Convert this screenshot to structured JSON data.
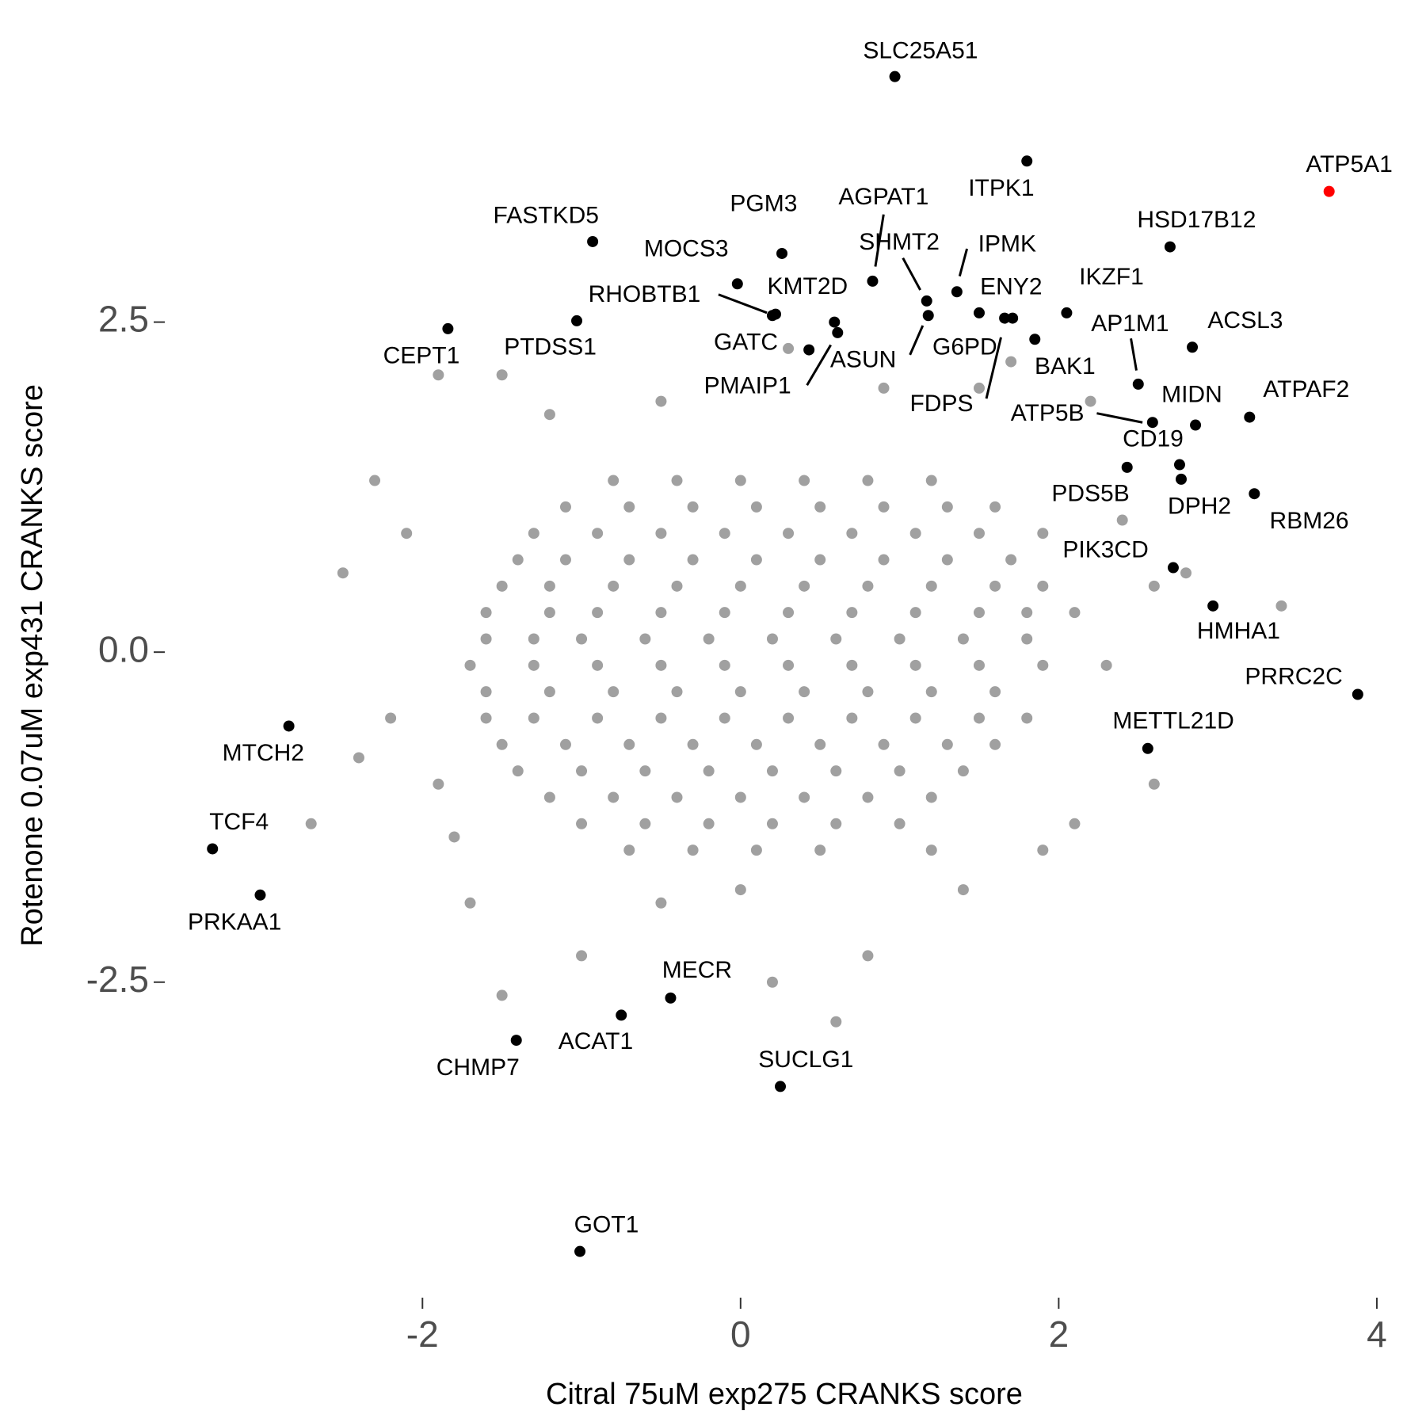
{
  "chart_data": {
    "type": "scatter",
    "x_label": "Citral 75uM exp275 CRANKS score",
    "y_label": "Rotenone 0.07uM exp431 CRANKS score",
    "xlim": [
      -3.62,
      4.08
    ],
    "ylim": [
      -4.89,
      4.73
    ],
    "xticks": [
      -2,
      0,
      2,
      4
    ],
    "yticks": [
      -2.5,
      {
        "value": 0,
        "label": "0.0"
      },
      2.5
    ],
    "grid": false,
    "background": {
      "color": "#a0a0a0",
      "x": [
        -0.8,
        -0.4,
        0,
        0.4,
        0.8,
        1.2,
        -1.1,
        -0.7,
        -0.3,
        0.1,
        0.5,
        0.9,
        1.3,
        1.6,
        -1.3,
        -0.9,
        -0.5,
        -0.1,
        0.3,
        0.7,
        1.1,
        1.5,
        -1.4,
        -1.1,
        -0.7,
        -0.3,
        0.1,
        0.5,
        0.9,
        1.3,
        1.7,
        -1.5,
        -1.2,
        -0.8,
        -0.4,
        0,
        0.4,
        0.8,
        1.2,
        1.6,
        1.9,
        -1.6,
        -1.2,
        -0.9,
        -0.5,
        -0.1,
        0.3,
        0.7,
        1.1,
        1.5,
        1.8,
        -1.6,
        -1.3,
        -1.0,
        -0.6,
        -0.2,
        0.2,
        0.6,
        1.0,
        1.4,
        1.8,
        -1.7,
        -1.3,
        -0.9,
        -0.5,
        -0.1,
        0.3,
        0.7,
        1.1,
        1.5,
        1.9,
        -1.6,
        -1.2,
        -0.8,
        -0.4,
        0,
        0.4,
        0.8,
        1.2,
        1.6,
        -1.6,
        -1.3,
        -0.9,
        -0.5,
        -0.1,
        0.3,
        0.7,
        1.1,
        1.5,
        1.8,
        -1.5,
        -1.1,
        -0.7,
        -0.3,
        0.1,
        0.5,
        0.9,
        1.3,
        1.6,
        -1.4,
        -1.0,
        -0.6,
        -0.2,
        0.2,
        0.6,
        1.0,
        1.4,
        -1.2,
        -0.8,
        -0.4,
        0,
        0.4,
        0.8,
        1.2,
        -1.0,
        -0.6,
        -0.2,
        0.2,
        0.6,
        1.0,
        -0.7,
        -0.3,
        0.1,
        0.5,
        -2.5,
        -2.2,
        -2.7,
        -2.4,
        -2.3,
        -1.9,
        -1.5,
        -1.8,
        -1.7,
        -1.5,
        -1.0,
        -0.5,
        0.2,
        0.6,
        0.8,
        1.2,
        1.4,
        1.9,
        2.1,
        2.6,
        2.3,
        2.6,
        3.4,
        2.4,
        2.2,
        1.7,
        0.3,
        0.9,
        -0.5,
        -1.2,
        -2.1,
        1.9,
        2.1,
        -1.9,
        0,
        1.5,
        2.8
      ],
      "y": [
        1.3,
        1.3,
        1.3,
        1.3,
        1.3,
        1.3,
        1.1,
        1.1,
        1.1,
        1.1,
        1.1,
        1.1,
        1.1,
        1.1,
        0.9,
        0.9,
        0.9,
        0.9,
        0.9,
        0.9,
        0.9,
        0.9,
        0.7,
        0.7,
        0.7,
        0.7,
        0.7,
        0.7,
        0.7,
        0.7,
        0.7,
        0.5,
        0.5,
        0.5,
        0.5,
        0.5,
        0.5,
        0.5,
        0.5,
        0.5,
        0.5,
        0.3,
        0.3,
        0.3,
        0.3,
        0.3,
        0.3,
        0.3,
        0.3,
        0.3,
        0.3,
        0.1,
        0.1,
        0.1,
        0.1,
        0.1,
        0.1,
        0.1,
        0.1,
        0.1,
        0.1,
        -0.1,
        -0.1,
        -0.1,
        -0.1,
        -0.1,
        -0.1,
        -0.1,
        -0.1,
        -0.1,
        -0.1,
        -0.3,
        -0.3,
        -0.3,
        -0.3,
        -0.3,
        -0.3,
        -0.3,
        -0.3,
        -0.3,
        -0.5,
        -0.5,
        -0.5,
        -0.5,
        -0.5,
        -0.5,
        -0.5,
        -0.5,
        -0.5,
        -0.5,
        -0.7,
        -0.7,
        -0.7,
        -0.7,
        -0.7,
        -0.7,
        -0.7,
        -0.7,
        -0.7,
        -0.9,
        -0.9,
        -0.9,
        -0.9,
        -0.9,
        -0.9,
        -0.9,
        -0.9,
        -1.1,
        -1.1,
        -1.1,
        -1.1,
        -1.1,
        -1.1,
        -1.1,
        -1.3,
        -1.3,
        -1.3,
        -1.3,
        -1.3,
        -1.3,
        -1.5,
        -1.5,
        -1.5,
        -1.5,
        0.6,
        -0.5,
        -1.3,
        -0.8,
        1.3,
        2.1,
        2.1,
        -1.4,
        -1.9,
        -2.6,
        -2.3,
        -1.9,
        -2.5,
        -2.8,
        -2.3,
        -1.5,
        -1.8,
        -1.5,
        -1.3,
        -1.0,
        -0.1,
        0.5,
        0.35,
        1.0,
        1.9,
        2.2,
        2.3,
        2.0,
        1.9,
        1.8,
        0.9,
        0.9,
        0.3,
        -1.0,
        -1.8,
        2.0,
        0.6
      ]
    },
    "points": [
      {
        "label": "SLC25A51",
        "x": 0.97,
        "y": 4.36,
        "color": "#000000"
      },
      {
        "label": "ITPK1",
        "x": 1.8,
        "y": 3.72,
        "color": "#000000"
      },
      {
        "label": "ATP5A1",
        "x": 3.7,
        "y": 3.49,
        "color": "#ff0000"
      },
      {
        "label": "HSD17B12",
        "x": 2.7,
        "y": 3.07,
        "color": "#000000"
      },
      {
        "label": "FASTKD5",
        "x": -0.93,
        "y": 3.11,
        "color": "#000000"
      },
      {
        "label": "PGM3",
        "x": 0.26,
        "y": 3.02,
        "color": "#000000"
      },
      {
        "label": "AGPAT1",
        "x": 0.83,
        "y": 2.81,
        "color": "#000000"
      },
      {
        "label": "MOCS3",
        "x": -0.02,
        "y": 2.79,
        "color": "#000000"
      },
      {
        "label": "IPMK",
        "x": 1.36,
        "y": 2.73,
        "color": "#000000"
      },
      {
        "label": "SHMT2",
        "x": 1.17,
        "y": 2.66,
        "color": "#000000"
      },
      {
        "label": "KMT2D",
        "x": 0.22,
        "y": 2.56,
        "color": "#000000"
      },
      {
        "label": "RHOBTB1",
        "x": 0.2,
        "y": 2.55,
        "color": "#000000"
      },
      {
        "label": "ENY2",
        "x": 1.5,
        "y": 2.57,
        "color": "#000000"
      },
      {
        "label": "G6PD",
        "x": 1.18,
        "y": 2.55,
        "color": "#000000"
      },
      {
        "label": "IKZF1",
        "x": 2.05,
        "y": 2.57,
        "color": "#000000"
      },
      {
        "label": "CEPT1",
        "x": -1.84,
        "y": 2.45,
        "color": "#000000"
      },
      {
        "label": "PTDSS1",
        "x": -1.03,
        "y": 2.51,
        "color": "#000000"
      },
      {
        "label": "GATC",
        "x": 0.43,
        "y": 2.29,
        "color": "#000000"
      },
      {
        "label": "ASUN",
        "x": 0.61,
        "y": 2.42,
        "color": "#000000"
      },
      {
        "label": "PMAIP1",
        "x": 0.59,
        "y": 2.5,
        "color": "#000000"
      },
      {
        "label": "FDPS",
        "x": 1.66,
        "y": 2.53,
        "color": "#000000"
      },
      {
        "label": null,
        "x": 1.71,
        "y": 2.53,
        "color": "#000000"
      },
      {
        "label": "BAK1",
        "x": 1.85,
        "y": 2.37,
        "color": "#000000"
      },
      {
        "label": "ACSL3",
        "x": 2.84,
        "y": 2.31,
        "color": "#000000"
      },
      {
        "label": "AP1M1",
        "x": 2.5,
        "y": 2.03,
        "color": "#000000"
      },
      {
        "label": "ATPAF2",
        "x": 3.2,
        "y": 1.78,
        "color": "#000000"
      },
      {
        "label": "MIDN",
        "x": 2.86,
        "y": 1.72,
        "color": "#000000"
      },
      {
        "label": "ATP5B",
        "x": 2.59,
        "y": 1.74,
        "color": "#000000"
      },
      {
        "label": "CD19",
        "x": 2.76,
        "y": 1.42,
        "color": "#000000"
      },
      {
        "label": "PDS5B",
        "x": 2.43,
        "y": 1.4,
        "color": "#000000"
      },
      {
        "label": "DPH2",
        "x": 2.77,
        "y": 1.31,
        "color": "#000000"
      },
      {
        "label": "RBM26",
        "x": 3.23,
        "y": 1.2,
        "color": "#000000"
      },
      {
        "label": "PIK3CD",
        "x": 2.72,
        "y": 0.64,
        "color": "#000000"
      },
      {
        "label": "HMHA1",
        "x": 2.97,
        "y": 0.35,
        "color": "#000000"
      },
      {
        "label": "PRRC2C",
        "x": 3.88,
        "y": -0.32,
        "color": "#000000"
      },
      {
        "label": "METTL21D",
        "x": 2.56,
        "y": -0.73,
        "color": "#000000"
      },
      {
        "label": "MTCH2",
        "x": -2.84,
        "y": -0.56,
        "color": "#000000"
      },
      {
        "label": "TCF4",
        "x": -3.32,
        "y": -1.49,
        "color": "#000000"
      },
      {
        "label": "PRKAA1",
        "x": -3.02,
        "y": -1.84,
        "color": "#000000"
      },
      {
        "label": "MECR",
        "x": -0.44,
        "y": -2.62,
        "color": "#000000"
      },
      {
        "label": "ACAT1",
        "x": -0.75,
        "y": -2.75,
        "color": "#000000"
      },
      {
        "label": "CHMP7",
        "x": -1.41,
        "y": -2.94,
        "color": "#000000"
      },
      {
        "label": "SUCLG1",
        "x": 0.25,
        "y": -3.29,
        "color": "#000000"
      },
      {
        "label": "GOT1",
        "x": -1.01,
        "y": -4.54,
        "color": "#000000"
      }
    ]
  }
}
